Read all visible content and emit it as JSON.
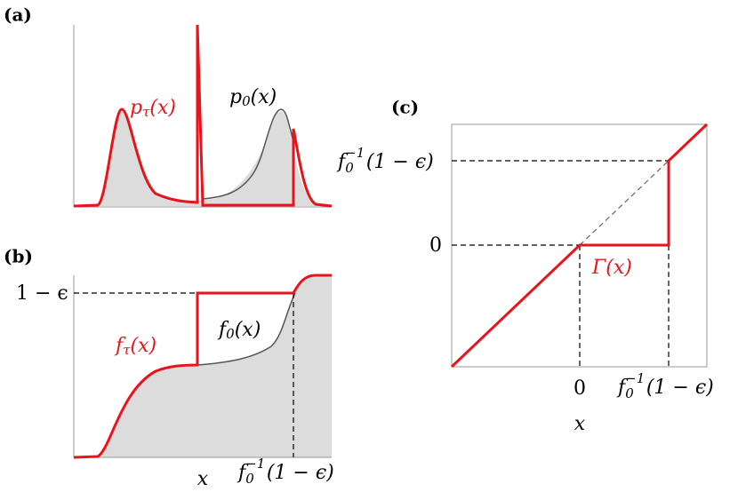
{
  "panels": {
    "a": {
      "label": "(a)",
      "p_tau": {
        "base": "p",
        "sub": "τ",
        "arg": "(x)"
      },
      "p_0": {
        "base": "p",
        "sub": "0",
        "arg": "(x)"
      }
    },
    "b": {
      "label": "(b)",
      "level": "1 − ϵ",
      "f_tau": {
        "base": "f",
        "sub": "τ",
        "arg": "(x)"
      },
      "f_0": {
        "base": "f",
        "sub": "0",
        "arg": "(x)"
      },
      "x_label": "x",
      "inverse": {
        "base": "f",
        "sub": "0",
        "sup": "−1",
        "arg": "(1 − ϵ)"
      }
    },
    "c": {
      "label": "(c)",
      "y_inverse": {
        "base": "f",
        "sub": "0",
        "sup": "−1",
        "arg": "(1 − ϵ)"
      },
      "y_zero": "0",
      "x_zero": "0",
      "x_inverse": {
        "base": "f",
        "sub": "0",
        "sup": "−1",
        "arg": "(1 − ϵ)"
      },
      "x_label": "x",
      "gamma": "Γ(x)"
    }
  }
}
